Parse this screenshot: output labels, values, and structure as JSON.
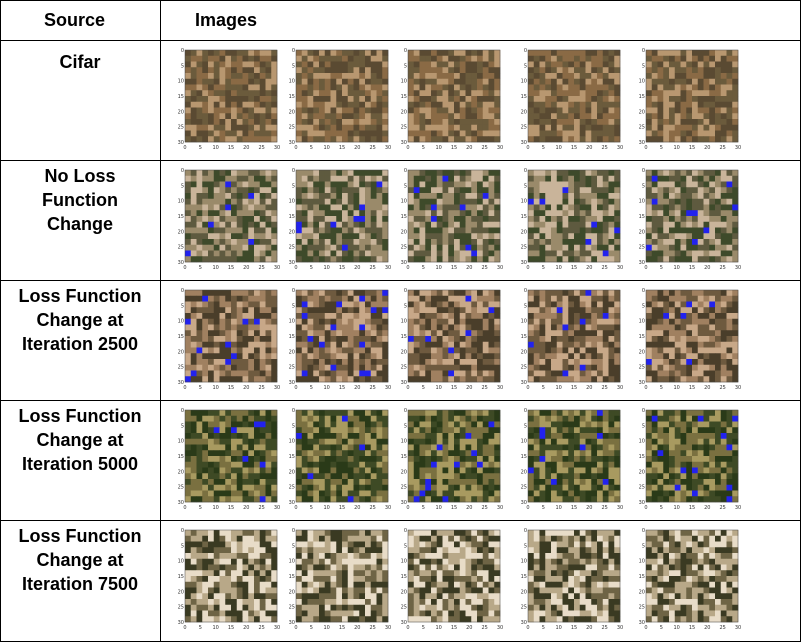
{
  "table": {
    "headers": {
      "source": "Source",
      "images": "Images"
    },
    "rows": [
      {
        "label_lines": [
          "Cifar"
        ],
        "palette": [
          "#5a4a32",
          "#8a6a45",
          "#b89770",
          "#6b5b3c"
        ]
      },
      {
        "label_lines": [
          "No Loss",
          "Function",
          "Change"
        ],
        "palette": [
          "#5e5a3f",
          "#9a8a6a",
          "#c9b49a",
          "#3e4a2a"
        ]
      },
      {
        "label_lines": [
          "Loss Function",
          "Change at",
          "Iteration 2500"
        ],
        "palette": [
          "#6e5a3f",
          "#a08060",
          "#c8a888",
          "#4a3e2a"
        ]
      },
      {
        "label_lines": [
          "Loss Function",
          "Change at",
          "Iteration 5000"
        ],
        "palette": [
          "#3e4a25",
          "#7a7040",
          "#a89a60",
          "#2a3a18"
        ]
      },
      {
        "label_lines": [
          "Loss Function",
          "Change at",
          "Iteration 7500"
        ],
        "palette": [
          "#6e6445",
          "#b8a888",
          "#e8dcc8",
          "#3a3a22"
        ]
      }
    ]
  },
  "plot_axes": {
    "x_ticks": [
      "0",
      "5",
      "10",
      "15",
      "20",
      "25",
      "30"
    ],
    "y_ticks": [
      "0",
      "5",
      "10",
      "15",
      "20",
      "25",
      "30"
    ]
  }
}
